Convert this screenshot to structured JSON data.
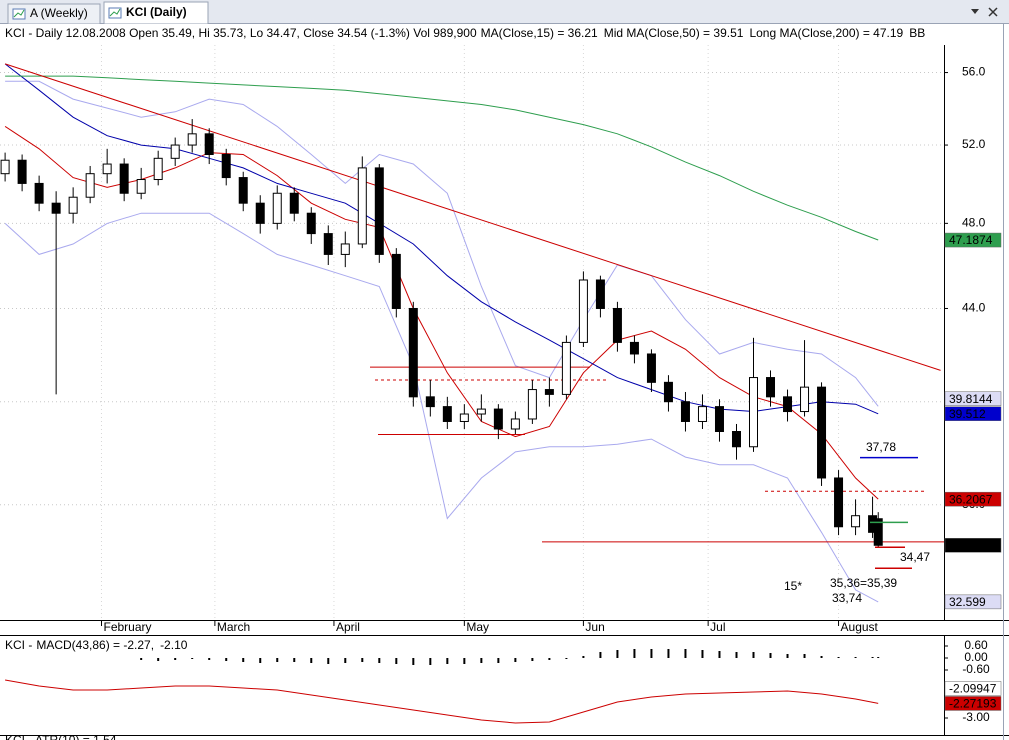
{
  "window": {
    "tabs": [
      "A (Weekly)",
      "KCI (Daily)"
    ]
  },
  "chart_data": [
    {
      "type": "candlestick",
      "title": "KCI - Daily 12.08.2008 Open 35.49, Hi 35.73, Lo 34.47, Close 34.54 (-1.3%) Vol 989,900",
      "log_scale": true,
      "grid": true,
      "xlim": [
        -0.9,
        165.6
      ],
      "ylim": [
        32.0,
        57.6
      ],
      "xticks": [
        {
          "value": 17,
          "label": "February"
        },
        {
          "value": 37,
          "label": "March"
        },
        {
          "value": 58,
          "label": "April"
        },
        {
          "value": 81,
          "label": "May"
        },
        {
          "value": 102,
          "label": "Jun"
        },
        {
          "value": 124,
          "label": "Jul"
        },
        {
          "value": 147,
          "label": "August"
        }
      ],
      "yticks": [
        {
          "value": 56,
          "label": "56.0"
        },
        {
          "value": 52,
          "label": "52.0"
        },
        {
          "value": 48,
          "label": "48.0"
        },
        {
          "value": 44,
          "label": "44.0"
        },
        {
          "value": 40,
          "label": "40.0"
        },
        {
          "value": 36,
          "label": "36.0"
        }
      ],
      "candles": {
        "x": [
          0,
          3,
          6,
          9,
          12,
          15,
          18,
          21,
          24,
          27,
          30,
          33,
          36,
          39,
          42,
          45,
          48,
          51,
          54,
          57,
          60,
          63,
          66,
          69,
          72,
          75,
          78,
          81,
          84,
          87,
          90,
          93,
          96,
          99,
          102,
          105,
          108,
          111,
          114,
          117,
          120,
          123,
          126,
          129,
          132,
          135,
          138,
          141,
          144,
          147,
          150,
          153,
          154
        ],
        "open": [
          50.5,
          51.2,
          50.0,
          49.0,
          48.5,
          49.3,
          50.5,
          51.0,
          49.5,
          50.2,
          51.3,
          52.0,
          52.6,
          51.5,
          50.3,
          49.0,
          48.0,
          49.5,
          48.5,
          47.5,
          46.5,
          47.0,
          50.8,
          46.5,
          44.0,
          40.2,
          39.8,
          39.2,
          39.5,
          39.7,
          38.9,
          39.3,
          40.5,
          40.3,
          42.5,
          45.3,
          44.0,
          42.5,
          42.0,
          40.8,
          40.0,
          39.2,
          39.8,
          38.8,
          38.2,
          41.0,
          40.2,
          39.6,
          40.6,
          37.0,
          35.2,
          35.6,
          35.49
        ],
        "high": [
          51.6,
          51.5,
          50.4,
          49.6,
          49.8,
          50.9,
          51.8,
          51.3,
          50.8,
          51.7,
          52.4,
          53.4,
          52.9,
          51.8,
          50.6,
          49.4,
          49.9,
          49.8,
          48.8,
          47.9,
          47.6,
          51.4,
          51.0,
          46.8,
          44.3,
          40.9,
          40.2,
          39.9,
          40.3,
          39.9,
          39.6,
          40.9,
          41.0,
          42.8,
          45.7,
          45.5,
          44.3,
          42.8,
          42.2,
          41.1,
          40.4,
          40.3,
          40.1,
          39.1,
          42.7,
          41.3,
          40.5,
          42.6,
          40.8,
          37.3,
          36.2,
          36.3,
          35.73
        ],
        "low": [
          50.1,
          49.6,
          48.6,
          40.3,
          48.0,
          49.0,
          50.0,
          49.1,
          49.2,
          49.9,
          50.9,
          51.6,
          51.0,
          49.9,
          48.6,
          47.5,
          47.7,
          48.1,
          47.0,
          46.0,
          45.9,
          46.8,
          46.1,
          43.6,
          39.8,
          39.4,
          38.9,
          38.9,
          39.2,
          38.5,
          38.7,
          39.1,
          39.8,
          40.1,
          42.3,
          43.6,
          42.1,
          41.6,
          40.4,
          39.6,
          38.8,
          38.9,
          38.4,
          37.7,
          38.0,
          39.8,
          39.2,
          39.4,
          36.7,
          34.9,
          34.9,
          34.8,
          34.47
        ],
        "close": [
          51.2,
          50.0,
          49.0,
          48.5,
          49.3,
          50.5,
          51.0,
          49.5,
          50.2,
          51.3,
          52.0,
          52.6,
          51.5,
          50.3,
          49.0,
          48.0,
          49.5,
          48.5,
          47.5,
          46.5,
          47.0,
          50.8,
          46.5,
          44.0,
          40.2,
          39.8,
          39.2,
          39.5,
          39.7,
          38.9,
          39.3,
          40.5,
          40.3,
          42.5,
          45.3,
          44.0,
          42.5,
          42.0,
          40.8,
          40.0,
          39.2,
          39.8,
          38.8,
          38.2,
          41.0,
          40.2,
          39.6,
          40.6,
          37.0,
          35.2,
          35.6,
          35.0,
          34.54
        ]
      },
      "series": [
        {
          "name": "MA(Close,15) = 36.21",
          "color": "#cc0000",
          "x": [
            0,
            6,
            12,
            18,
            24,
            30,
            36,
            42,
            48,
            54,
            60,
            66,
            72,
            78,
            84,
            90,
            96,
            102,
            108,
            114,
            120,
            126,
            132,
            138,
            144,
            150,
            154
          ],
          "values": [
            53.0,
            51.8,
            50.3,
            49.8,
            50.2,
            50.8,
            51.6,
            51.5,
            50.4,
            49.0,
            48.2,
            47.8,
            44.0,
            41.2,
            39.2,
            38.6,
            39.0,
            41.2,
            42.6,
            43.0,
            42.2,
            41.0,
            40.2,
            39.8,
            38.7,
            37.0,
            36.21
          ]
        },
        {
          "name": "Mid MA(Close,50) = 39.51",
          "color": "#0000aa",
          "x": [
            0,
            6,
            12,
            18,
            24,
            30,
            36,
            42,
            48,
            54,
            60,
            66,
            72,
            78,
            84,
            90,
            96,
            102,
            108,
            114,
            120,
            126,
            132,
            138,
            144,
            150,
            154
          ],
          "values": [
            56.5,
            55.0,
            53.5,
            52.5,
            52.0,
            51.8,
            51.3,
            50.8,
            50.0,
            49.5,
            49.0,
            48.0,
            47.0,
            45.5,
            44.3,
            43.4,
            42.6,
            41.8,
            41.0,
            40.5,
            40.0,
            39.7,
            39.6,
            39.8,
            40.0,
            39.9,
            39.51
          ]
        },
        {
          "name": "Long MA(Close,200) = 47.19",
          "color": "#2e9e4e",
          "x": [
            0,
            6,
            12,
            18,
            24,
            30,
            36,
            42,
            48,
            54,
            60,
            66,
            72,
            78,
            84,
            90,
            96,
            102,
            108,
            114,
            120,
            126,
            132,
            138,
            144,
            150,
            154
          ],
          "values": [
            55.8,
            55.8,
            55.8,
            55.7,
            55.6,
            55.5,
            55.4,
            55.3,
            55.2,
            55.1,
            55.0,
            54.8,
            54.6,
            54.4,
            54.2,
            53.9,
            53.5,
            53.1,
            52.6,
            51.9,
            51.1,
            50.4,
            49.6,
            48.9,
            48.3,
            47.6,
            47.19
          ]
        },
        {
          "name": "BB",
          "color": "#a9a9ee",
          "x": [
            0,
            6,
            12,
            18,
            24,
            30,
            36,
            42,
            48,
            54,
            60,
            66,
            72,
            78,
            84,
            90,
            96,
            102,
            108,
            114,
            120,
            126,
            132,
            138,
            144,
            150,
            154
          ],
          "upper": [
            55.5,
            55.5,
            54.5,
            54.0,
            53.5,
            53.8,
            54.5,
            54.2,
            53.0,
            51.5,
            50.0,
            51.5,
            51.0,
            49.5,
            45.0,
            41.5,
            41.0,
            43.5,
            46.0,
            45.5,
            43.5,
            42.0,
            42.5,
            42.2,
            42.0,
            41.0,
            39.8144
          ],
          "lower": [
            48.0,
            46.5,
            47.0,
            48.0,
            48.5,
            48.5,
            48.5,
            47.5,
            46.5,
            46.0,
            45.5,
            45.0,
            41.5,
            35.5,
            37.0,
            38.0,
            38.2,
            38.2,
            38.3,
            38.5,
            37.8,
            37.5,
            37.5,
            37.0,
            35.0,
            33.0,
            32.599
          ]
        }
      ],
      "trendline": {
        "color": "#cc0000",
        "x": [
          0,
          165
        ],
        "values": [
          56.5,
          41.3
        ]
      },
      "levels": [
        {
          "value": 41.44,
          "color": "#cc0000",
          "dashed": false
        },
        {
          "value": 40.9,
          "color": "#cc0000",
          "dashed": true
        },
        {
          "value": 38.68,
          "color": "#cc0000",
          "dashed": false
        },
        {
          "value": 36.5,
          "color": "#cc0000",
          "dashed": true
        },
        {
          "value": 34.66,
          "color": "#cc0000",
          "dashed": false
        }
      ],
      "marks": [
        {
          "value": 37.78,
          "label": "37,78",
          "color": "#0000cc"
        },
        {
          "value": 35.36,
          "label": "35,36=35,39",
          "color": "#2e9e4e"
        },
        {
          "value": 34.47,
          "label": "34,47",
          "color": "#cc0000"
        },
        {
          "value": 33.74,
          "label": "33,74",
          "color": "#cc0000"
        }
      ],
      "note": "15*",
      "price_labels": [
        {
          "value": 47.1874,
          "color": "#2e9e4e",
          "text_color": "#ffffff"
        },
        {
          "value": 39.8144,
          "color": "#dcdcf5",
          "text_color": "#000000"
        },
        {
          "value": 39.512,
          "color": "#0000cc",
          "text_color": "#ffffff"
        },
        {
          "value": 36.2067,
          "color": "#cc0000",
          "text_color": "#000000"
        },
        {
          "value": 34.54,
          "color": "#000000",
          "text_color": "#ffffff"
        },
        {
          "value": 32.599,
          "color": "#dcdcf5",
          "text_color": "#000000"
        }
      ]
    },
    {
      "type": "macd",
      "title": "KCI - ",
      "legend_items": [
        {
          "name": "MACD(43,86) = -2.27,",
          "color": "#cc0000"
        },
        {
          "name": "-2.10",
          "color": "#000000"
        }
      ],
      "ylim": [
        -3.85,
        0.9
      ],
      "yticks": [
        {
          "value": 0.6,
          "label": "0.60"
        },
        {
          "value": 0,
          "label": "0.00"
        },
        {
          "value": -0.6,
          "label": "-0.60"
        },
        {
          "value": -3,
          "label": "-3.00"
        }
      ],
      "histogram": {
        "color": "#000000",
        "x": [
          0,
          3,
          6,
          9,
          12,
          15,
          18,
          21,
          24,
          27,
          30,
          33,
          36,
          39,
          42,
          45,
          48,
          51,
          54,
          57,
          60,
          63,
          66,
          69,
          72,
          75,
          78,
          81,
          84,
          87,
          90,
          93,
          96,
          99,
          102,
          105,
          108,
          111,
          114,
          117,
          120,
          123,
          126,
          129,
          132,
          135,
          138,
          141,
          144,
          147,
          150,
          153,
          154
        ],
        "values": [
          null,
          null,
          null,
          null,
          null,
          null,
          null,
          null,
          -0.1,
          -0.15,
          -0.1,
          -0.05,
          -0.1,
          -0.15,
          -0.2,
          -0.25,
          -0.2,
          -0.2,
          -0.25,
          -0.3,
          -0.25,
          -0.2,
          -0.25,
          -0.3,
          -0.35,
          -0.35,
          -0.3,
          -0.3,
          -0.25,
          -0.25,
          -0.2,
          -0.15,
          -0.1,
          -0.05,
          0.1,
          0.3,
          0.4,
          0.45,
          0.45,
          0.45,
          0.45,
          0.4,
          0.35,
          0.3,
          0.3,
          0.25,
          0.2,
          0.2,
          0.1,
          0.05,
          0.05,
          0.05,
          0.05
        ]
      },
      "line": {
        "color": "#cc0000",
        "x": [
          0,
          6,
          12,
          18,
          24,
          30,
          36,
          42,
          48,
          54,
          60,
          66,
          72,
          78,
          84,
          90,
          96,
          102,
          108,
          114,
          120,
          126,
          132,
          138,
          144,
          150,
          154
        ],
        "values": [
          -1.1,
          -1.4,
          -1.6,
          -1.6,
          -1.5,
          -1.4,
          -1.4,
          -1.5,
          -1.6,
          -1.85,
          -2.1,
          -2.35,
          -2.6,
          -2.85,
          -3.1,
          -3.25,
          -3.2,
          -2.7,
          -2.2,
          -1.95,
          -1.8,
          -1.75,
          -1.7,
          -1.65,
          -1.8,
          -2.05,
          -2.27
        ]
      },
      "price_labels": [
        {
          "value": -2.09947,
          "color": "#ffffff",
          "text_color": "#000000"
        },
        {
          "value": -2.27193,
          "color": "#cc0000",
          "text_color": "#000000"
        }
      ]
    },
    {
      "type": "atr",
      "title": "KCI - ATR(10) = 1.54"
    }
  ]
}
